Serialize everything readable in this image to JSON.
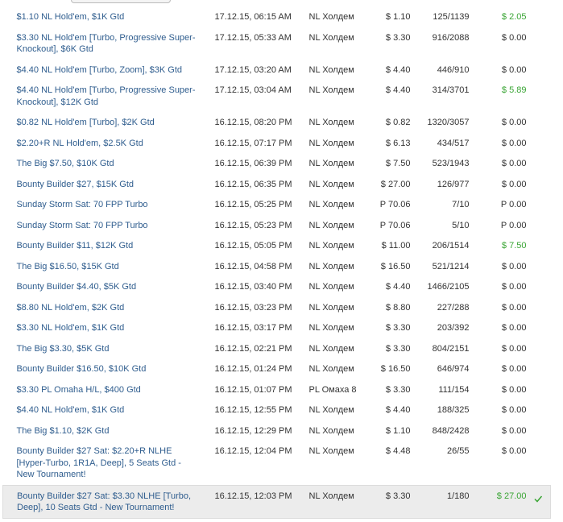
{
  "table": {
    "rows": [
      [
        "$1.10 NL Hold'em, $1K Gtd",
        "17.12.15, 06:15 AM",
        "NL Холдем",
        "$ 1.10",
        "125/1139",
        "$ 2.05"
      ],
      [
        "$3.30 NL Hold'em [Turbo, Progressive Super-Knockout], $6K Gtd",
        "17.12.15, 05:33 AM",
        "NL Холдем",
        "$ 3.30",
        "916/2088",
        "$ 0.00"
      ],
      [
        "$4.40 NL Hold'em [Turbo, Zoom], $3K Gtd",
        "17.12.15, 03:20 AM",
        "NL Холдем",
        "$ 4.40",
        "446/910",
        "$ 0.00"
      ],
      [
        "$4.40 NL Hold'em [Turbo, Progressive Super-Knockout], $12K Gtd",
        "17.12.15, 03:04 AM",
        "NL Холдем",
        "$ 4.40",
        "314/3701",
        "$ 5.89"
      ],
      [
        "$0.82 NL Hold'em [Turbo], $2K Gtd",
        "16.12.15, 08:20 PM",
        "NL Холдем",
        "$ 0.82",
        "1320/3057",
        "$ 0.00"
      ],
      [
        "$2.20+R NL Hold'em, $2.5K Gtd",
        "16.12.15, 07:17 PM",
        "NL Холдем",
        "$ 6.13",
        "434/517",
        "$ 0.00"
      ],
      [
        "The Big $7.50, $10K Gtd",
        "16.12.15, 06:39 PM",
        "NL Холдем",
        "$ 7.50",
        "523/1943",
        "$ 0.00"
      ],
      [
        "Bounty Builder $27, $15K Gtd",
        "16.12.15, 06:35 PM",
        "NL Холдем",
        "$ 27.00",
        "126/977",
        "$ 0.00"
      ],
      [
        "Sunday Storm Sat: 70 FPP Turbo",
        "16.12.15, 05:25 PM",
        "NL Холдем",
        "P 70.06",
        "7/10",
        "P 0.00"
      ],
      [
        "Sunday Storm Sat: 70 FPP Turbo",
        "16.12.15, 05:23 PM",
        "NL Холдем",
        "P 70.06",
        "5/10",
        "P 0.00"
      ],
      [
        "Bounty Builder $11, $12K Gtd",
        "16.12.15, 05:05 PM",
        "NL Холдем",
        "$ 11.00",
        "206/1514",
        "$ 7.50"
      ],
      [
        "The Big $16.50, $15K Gtd",
        "16.12.15, 04:58 PM",
        "NL Холдем",
        "$ 16.50",
        "521/1214",
        "$ 0.00"
      ],
      [
        "Bounty Builder $4.40, $5K Gtd",
        "16.12.15, 03:40 PM",
        "NL Холдем",
        "$ 4.40",
        "1466/2105",
        "$ 0.00"
      ],
      [
        "$8.80 NL Hold'em, $2K Gtd",
        "16.12.15, 03:23 PM",
        "NL Холдем",
        "$ 8.80",
        "227/288",
        "$ 0.00"
      ],
      [
        "$3.30 NL Hold'em, $1K Gtd",
        "16.12.15, 03:17 PM",
        "NL Холдем",
        "$ 3.30",
        "203/392",
        "$ 0.00"
      ],
      [
        "The Big $3.30, $5K Gtd",
        "16.12.15, 02:21 PM",
        "NL Холдем",
        "$ 3.30",
        "804/2151",
        "$ 0.00"
      ],
      [
        "Bounty Builder $16.50, $10K Gtd",
        "16.12.15, 01:24 PM",
        "NL Холдем",
        "$ 16.50",
        "646/974",
        "$ 0.00"
      ],
      [
        "$3.30 PL Omaha H/L, $400 Gtd",
        "16.12.15, 01:07 PM",
        "PL Омаха 8",
        "$ 3.30",
        "111/154",
        "$ 0.00"
      ],
      [
        "$4.40 NL Hold'em, $1K Gtd",
        "16.12.15, 12:55 PM",
        "NL Холдем",
        "$ 4.40",
        "188/325",
        "$ 0.00"
      ],
      [
        "The Big $1.10, $2K Gtd",
        "16.12.15, 12:29 PM",
        "NL Холдем",
        "$ 1.10",
        "848/2428",
        "$ 0.00"
      ],
      [
        "Bounty Builder $27 Sat: $2.20+R NLHE [Hyper-Turbo, 1R1A, Deep], 5 Seats Gtd - New Tournament!",
        "16.12.15, 12:04 PM",
        "NL Холдем",
        "$ 4.48",
        "26/55",
        "$ 0.00"
      ],
      [
        "Bounty Builder $27 Sat: $3.30 NLHE [Turbo, Deep], 10 Seats Gtd - New Tournament!",
        "16.12.15, 12:03 PM",
        "NL Холдем",
        "$ 3.30",
        "1/180",
        "$ 27.00"
      ]
    ]
  }
}
